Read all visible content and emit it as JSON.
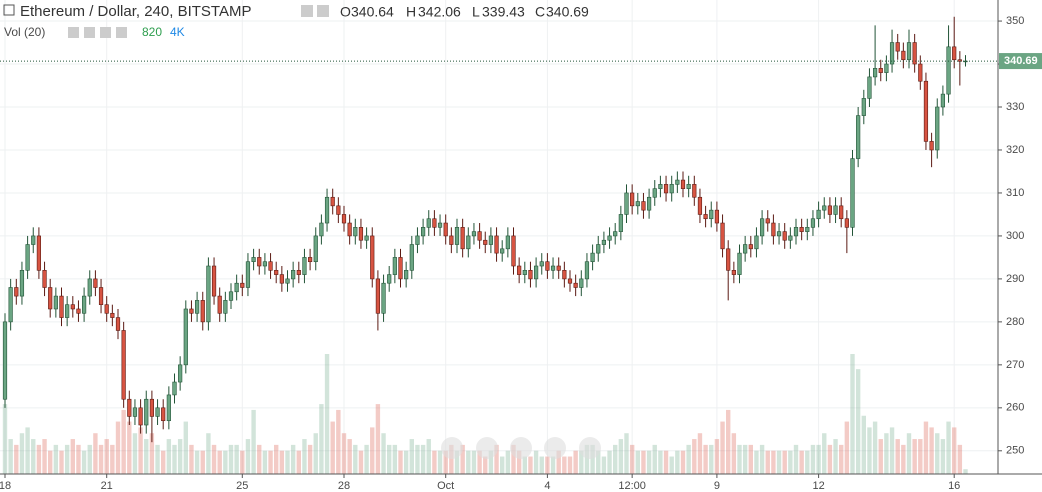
{
  "chart_data": {
    "type": "candlestick",
    "title": "Ethereum / Dollar, 240, BITSTAMP",
    "ohlc_labels": [
      "O",
      "H",
      "L",
      "C"
    ],
    "volume_title": "Vol (20)",
    "volume_ma": {
      "value": 4000,
      "label": "4K"
    },
    "up_color": "#6ba583",
    "down_color": "#d75442",
    "up_border": "#225437",
    "down_border": "#5b1a13",
    "ylim": [
      244.6,
      354.9
    ],
    "yticks": [
      250,
      260,
      270,
      280,
      290,
      300,
      310,
      320,
      330,
      340,
      350
    ],
    "xticks": [
      {
        "value": 0,
        "label": "18"
      },
      {
        "value": 18,
        "label": "21"
      },
      {
        "value": 42,
        "label": "25"
      },
      {
        "value": 60,
        "label": "28"
      },
      {
        "value": 78,
        "label": "Oct"
      },
      {
        "value": 96,
        "label": "4"
      },
      {
        "value": 111,
        "label": "12:00"
      },
      {
        "value": 126,
        "label": "9"
      },
      {
        "value": 144,
        "label": "12"
      },
      {
        "value": 168,
        "label": "16"
      }
    ],
    "grid": true,
    "open": [
      262,
      280,
      288,
      286,
      292,
      298,
      300,
      292,
      288,
      283,
      286,
      281,
      284,
      283,
      282,
      286,
      290,
      288,
      284,
      282,
      281,
      278,
      262,
      258,
      260,
      256,
      262,
      258,
      260,
      257,
      263,
      266,
      270,
      283,
      282,
      285,
      280,
      293,
      286,
      282,
      285,
      287,
      289,
      288,
      294,
      295,
      293,
      294,
      292,
      291,
      289,
      290,
      292,
      291,
      295,
      294,
      300,
      303,
      309,
      307,
      305,
      303,
      300,
      302,
      299,
      300,
      290,
      282,
      289,
      291,
      295,
      290,
      292,
      298,
      300,
      302,
      304,
      302,
      303,
      300,
      298,
      302,
      297,
      300,
      301,
      299,
      298,
      300,
      296,
      297,
      300,
      293,
      291,
      292,
      290,
      293,
      294,
      292,
      293,
      292,
      290,
      289,
      288,
      290,
      294,
      296,
      298,
      299,
      300,
      301,
      305,
      310,
      307,
      308,
      306,
      309,
      311,
      312,
      310,
      312,
      313,
      311,
      312,
      309,
      305,
      304,
      306,
      303,
      297,
      292,
      291,
      296,
      298,
      297,
      300,
      304,
      303,
      300,
      301,
      299,
      300,
      302,
      301,
      302,
      304,
      306,
      307,
      305,
      307,
      304,
      302,
      318,
      328,
      332,
      337,
      339,
      338,
      340,
      345,
      343,
      341,
      345,
      340,
      336,
      322,
      320,
      330,
      333,
      344,
      341,
      340.64
    ],
    "high": [
      282,
      290,
      290,
      294,
      300,
      302,
      302,
      294,
      290,
      288,
      288,
      286,
      286,
      285,
      288,
      292,
      292,
      290,
      286,
      284,
      283,
      280,
      264,
      262,
      262,
      264,
      264,
      262,
      262,
      265,
      268,
      272,
      285,
      285,
      287,
      287,
      295,
      295,
      288,
      287,
      289,
      291,
      291,
      296,
      297,
      297,
      296,
      296,
      294,
      293,
      292,
      294,
      294,
      297,
      297,
      302,
      305,
      311,
      311,
      309,
      307,
      305,
      304,
      304,
      302,
      302,
      292,
      291,
      293,
      297,
      297,
      294,
      300,
      302,
      304,
      306,
      306,
      305,
      305,
      302,
      304,
      304,
      302,
      303,
      303,
      301,
      302,
      302,
      299,
      302,
      302,
      295,
      294,
      294,
      295,
      296,
      296,
      295,
      295,
      294,
      292,
      291,
      292,
      296,
      298,
      300,
      301,
      302,
      303,
      307,
      312,
      312,
      310,
      310,
      311,
      313,
      314,
      314,
      314,
      315,
      315,
      314,
      314,
      311,
      307,
      308,
      308,
      305,
      299,
      294,
      298,
      300,
      300,
      302,
      306,
      306,
      305,
      303,
      303,
      302,
      304,
      304,
      304,
      306,
      308,
      309,
      309,
      309,
      309,
      306,
      320,
      330,
      334,
      339,
      349,
      341,
      342,
      348,
      347,
      345,
      348,
      347,
      342,
      338,
      324,
      332,
      335,
      349,
      351,
      343,
      342.06
    ],
    "low": [
      260,
      278,
      284,
      284,
      290,
      296,
      290,
      286,
      281,
      281,
      279,
      279,
      281,
      280,
      280,
      284,
      286,
      282,
      280,
      279,
      276,
      260,
      256,
      256,
      254,
      254,
      252,
      256,
      255,
      255,
      261,
      264,
      268,
      280,
      280,
      278,
      278,
      284,
      280,
      280,
      283,
      285,
      286,
      286,
      292,
      291,
      291,
      290,
      289,
      287,
      287,
      288,
      289,
      289,
      292,
      292,
      298,
      301,
      305,
      303,
      301,
      298,
      298,
      297,
      297,
      288,
      278,
      280,
      287,
      289,
      288,
      288,
      290,
      296,
      298,
      300,
      300,
      300,
      298,
      296,
      296,
      295,
      295,
      298,
      297,
      296,
      296,
      294,
      294,
      295,
      291,
      289,
      289,
      288,
      288,
      291,
      290,
      290,
      290,
      288,
      287,
      286,
      286,
      288,
      292,
      294,
      296,
      297,
      298,
      299,
      303,
      305,
      305,
      304,
      304,
      307,
      309,
      308,
      308,
      310,
      309,
      309,
      307,
      303,
      302,
      302,
      301,
      295,
      285,
      289,
      289,
      294,
      295,
      295,
      298,
      301,
      298,
      298,
      297,
      297,
      298,
      299,
      299,
      300,
      302,
      304,
      303,
      303,
      302,
      296,
      300,
      316,
      326,
      330,
      335,
      336,
      336,
      338,
      341,
      339,
      339,
      338,
      334,
      320,
      316,
      318,
      328,
      331,
      339,
      335,
      339.43
    ],
    "close": [
      280,
      288,
      286,
      292,
      298,
      300,
      292,
      288,
      283,
      286,
      281,
      284,
      283,
      282,
      286,
      290,
      288,
      284,
      282,
      281,
      278,
      262,
      258,
      260,
      256,
      262,
      258,
      260,
      257,
      263,
      266,
      270,
      283,
      282,
      285,
      280,
      293,
      286,
      282,
      285,
      287,
      289,
      288,
      294,
      295,
      293,
      294,
      292,
      291,
      289,
      290,
      292,
      291,
      295,
      294,
      300,
      303,
      309,
      307,
      305,
      303,
      300,
      302,
      299,
      300,
      290,
      282,
      289,
      291,
      295,
      290,
      292,
      298,
      300,
      302,
      304,
      302,
      303,
      300,
      298,
      302,
      297,
      300,
      301,
      299,
      298,
      300,
      296,
      297,
      300,
      293,
      291,
      292,
      290,
      293,
      294,
      292,
      293,
      292,
      290,
      289,
      288,
      290,
      294,
      296,
      298,
      299,
      300,
      301,
      305,
      310,
      307,
      308,
      306,
      309,
      311,
      312,
      310,
      312,
      313,
      311,
      312,
      309,
      305,
      304,
      306,
      303,
      297,
      292,
      291,
      296,
      298,
      297,
      300,
      304,
      303,
      300,
      301,
      299,
      300,
      302,
      301,
      302,
      304,
      306,
      307,
      305,
      307,
      304,
      302,
      318,
      328,
      332,
      337,
      339,
      338,
      340,
      345,
      343,
      341,
      345,
      340,
      336,
      322,
      320,
      330,
      333,
      344,
      341,
      340.64,
      340.69
    ],
    "volume": [
      12000,
      6000,
      5000,
      7000,
      8000,
      6000,
      5000,
      6000,
      4000,
      5000,
      4000,
      5000,
      6000,
      5000,
      4000,
      5000,
      7000,
      5000,
      6000,
      5000,
      9000,
      11000,
      9000,
      7000,
      8000,
      6000,
      7000,
      5000,
      4000,
      6000,
      5000,
      6000,
      9000,
      5000,
      4000,
      4000,
      7000,
      5000,
      4000,
      4000,
      5000,
      5000,
      4000,
      6000,
      11000,
      5000,
      4000,
      4000,
      5000,
      4000,
      4000,
      5000,
      4000,
      6000,
      5000,
      7000,
      12000,
      20600,
      9000,
      11000,
      7000,
      6000,
      5000,
      4000,
      5000,
      8000,
      12000,
      7000,
      5000,
      5000,
      4000,
      4000,
      6000,
      5000,
      5000,
      6000,
      4000,
      4000,
      4000,
      5000,
      4000,
      5000,
      4000,
      4000,
      4000,
      3000,
      4000,
      5000,
      3000,
      4000,
      5000,
      4000,
      3000,
      3000,
      4000,
      3000,
      3000,
      3000,
      4000,
      3000,
      3000,
      4000,
      4000,
      5000,
      5000,
      4000,
      3000,
      4000,
      5000,
      6000,
      7000,
      5000,
      4000,
      4000,
      4000,
      5000,
      4000,
      4000,
      3000,
      4000,
      4000,
      5000,
      6000,
      7000,
      5000,
      5000,
      6000,
      9000,
      11000,
      7000,
      5000,
      5000,
      5000,
      4000,
      5000,
      4000,
      4000,
      4000,
      4000,
      4000,
      5000,
      4000,
      4000,
      5000,
      5000,
      7000,
      5000,
      6000,
      5000,
      9000,
      20600,
      18000,
      10000,
      8000,
      9000,
      6000,
      7000,
      8000,
      6000,
      5000,
      7000,
      6000,
      6000,
      9000,
      8000,
      7000,
      6000,
      9000,
      8000,
      5000,
      820
    ]
  }
}
